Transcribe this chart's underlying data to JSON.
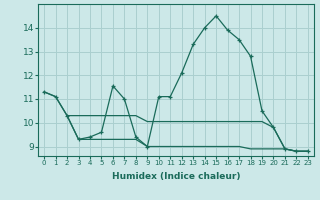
{
  "xlabel": "Humidex (Indice chaleur)",
  "background_color": "#cce8e8",
  "grid_color": "#aacfcf",
  "line_color": "#1a6b5a",
  "x_ticks": [
    0,
    1,
    2,
    3,
    4,
    5,
    6,
    7,
    8,
    9,
    10,
    11,
    12,
    13,
    14,
    15,
    16,
    17,
    18,
    19,
    20,
    21,
    22,
    23
  ],
  "y_ticks": [
    9,
    10,
    11,
    12,
    13,
    14
  ],
  "ylim": [
    8.6,
    15.0
  ],
  "xlim": [
    -0.5,
    23.5
  ],
  "series": [
    {
      "x": [
        0,
        1,
        2,
        3,
        4,
        5,
        6,
        7,
        8,
        9,
        10,
        11,
        12,
        13,
        14,
        15,
        16,
        17,
        18,
        19,
        20,
        21,
        22,
        23
      ],
      "y": [
        11.3,
        11.1,
        10.3,
        9.3,
        9.4,
        9.6,
        11.55,
        11.0,
        9.4,
        9.0,
        11.1,
        11.1,
        12.1,
        13.3,
        14.0,
        14.5,
        13.9,
        13.5,
        12.8,
        10.5,
        9.8,
        8.9,
        8.8,
        8.8
      ],
      "marker": true
    },
    {
      "x": [
        0,
        1,
        2,
        3,
        4,
        5,
        6,
        7,
        8,
        9,
        10,
        11,
        12,
        13,
        14,
        15,
        16,
        17,
        18,
        19,
        20,
        21,
        22,
        23
      ],
      "y": [
        11.3,
        11.1,
        10.3,
        10.3,
        10.3,
        10.3,
        10.3,
        10.3,
        10.3,
        10.05,
        10.05,
        10.05,
        10.05,
        10.05,
        10.05,
        10.05,
        10.05,
        10.05,
        10.05,
        10.05,
        9.8,
        8.9,
        8.8,
        8.8
      ],
      "marker": false
    },
    {
      "x": [
        2,
        3,
        4,
        5,
        6,
        7,
        8,
        9,
        10,
        11,
        12,
        13,
        14,
        15,
        16,
        17,
        18,
        19,
        20,
        21,
        22,
        23
      ],
      "y": [
        10.3,
        9.3,
        9.3,
        9.3,
        9.3,
        9.3,
        9.3,
        9.0,
        9.0,
        9.0,
        9.0,
        9.0,
        9.0,
        9.0,
        9.0,
        9.0,
        8.9,
        8.9,
        8.9,
        8.9,
        8.8,
        8.8
      ],
      "marker": false
    }
  ]
}
